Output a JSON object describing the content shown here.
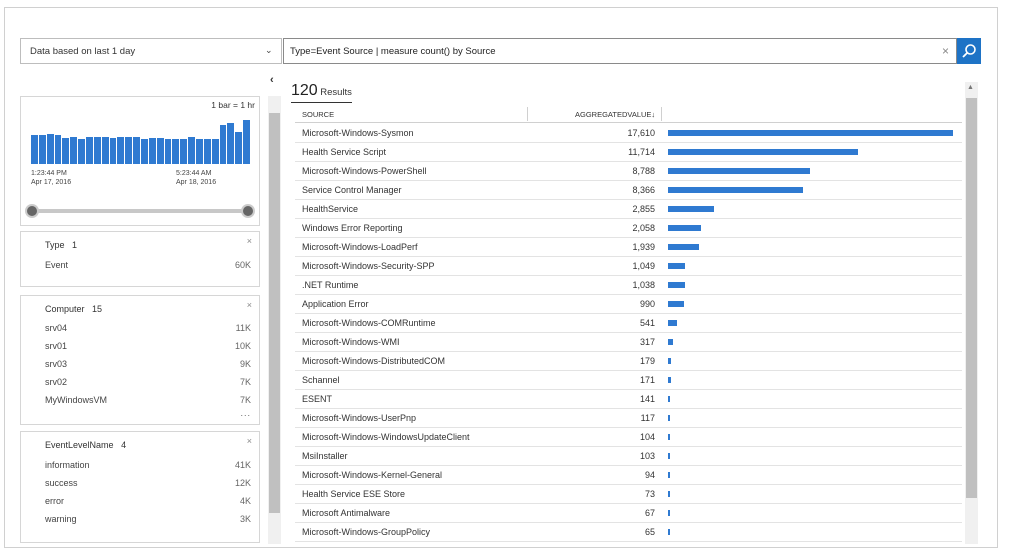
{
  "toolbar": {
    "time_range": "Data based on last 1 day",
    "query": "Type=Event Source | measure count() by Source"
  },
  "histogram": {
    "bar_unit_label": "1 bar = 1 hr",
    "start_time": "1:23:44 PM",
    "start_date": "Apr 17, 2016",
    "end_time": "5:23:44 AM",
    "end_date": "Apr 18, 2016",
    "bar_levels": [
      0.55,
      0.55,
      0.58,
      0.55,
      0.5,
      0.52,
      0.48,
      0.52,
      0.52,
      0.52,
      0.5,
      0.52,
      0.52,
      0.52,
      0.48,
      0.5,
      0.5,
      0.48,
      0.48,
      0.48,
      0.52,
      0.48,
      0.48,
      0.48,
      0.75,
      0.78,
      0.62,
      0.85
    ]
  },
  "facets": [
    {
      "title": "Type",
      "count": "1",
      "rows": [
        {
          "label": "Event",
          "value": "60K"
        }
      ]
    },
    {
      "title": "Computer",
      "count": "15",
      "rows": [
        {
          "label": "srv04",
          "value": "11K"
        },
        {
          "label": "srv01",
          "value": "10K"
        },
        {
          "label": "srv03",
          "value": "9K"
        },
        {
          "label": "srv02",
          "value": "7K"
        },
        {
          "label": "MyWindowsVM",
          "value": "7K"
        }
      ],
      "more": "..."
    },
    {
      "title": "EventLevelName",
      "count": "4",
      "rows": [
        {
          "label": "information",
          "value": "41K"
        },
        {
          "label": "success",
          "value": "12K"
        },
        {
          "label": "error",
          "value": "4K"
        },
        {
          "label": "warning",
          "value": "3K"
        }
      ]
    }
  ],
  "results": {
    "count": "120",
    "count_label": "Results",
    "col_source": "SOURCE",
    "col_value": "AGGREGATEDVALUE",
    "bar_color": "#2f7ad1",
    "rows": [
      {
        "source": "Microsoft-Windows-Sysmon",
        "value": "17,610",
        "n": 17610
      },
      {
        "source": "Health Service Script",
        "value": "11,714",
        "n": 11714
      },
      {
        "source": "Microsoft-Windows-PowerShell",
        "value": "8,788",
        "n": 8788
      },
      {
        "source": "Service Control Manager",
        "value": "8,366",
        "n": 8366
      },
      {
        "source": "HealthService",
        "value": "2,855",
        "n": 2855
      },
      {
        "source": "Windows Error Reporting",
        "value": "2,058",
        "n": 2058
      },
      {
        "source": "Microsoft-Windows-LoadPerf",
        "value": "1,939",
        "n": 1939
      },
      {
        "source": "Microsoft-Windows-Security-SPP",
        "value": "1,049",
        "n": 1049
      },
      {
        "source": ".NET Runtime",
        "value": "1,038",
        "n": 1038
      },
      {
        "source": "Application Error",
        "value": "990",
        "n": 990
      },
      {
        "source": "Microsoft-Windows-COMRuntime",
        "value": "541",
        "n": 541
      },
      {
        "source": "Microsoft-Windows-WMI",
        "value": "317",
        "n": 317
      },
      {
        "source": "Microsoft-Windows-DistributedCOM",
        "value": "179",
        "n": 179
      },
      {
        "source": "Schannel",
        "value": "171",
        "n": 171
      },
      {
        "source": "ESENT",
        "value": "141",
        "n": 141
      },
      {
        "source": "Microsoft-Windows-UserPnp",
        "value": "117",
        "n": 117
      },
      {
        "source": "Microsoft-Windows-WindowsUpdateClient",
        "value": "104",
        "n": 104
      },
      {
        "source": "MsiInstaller",
        "value": "103",
        "n": 103
      },
      {
        "source": "Microsoft-Windows-Kernel-General",
        "value": "94",
        "n": 94
      },
      {
        "source": "Health Service ESE Store",
        "value": "73",
        "n": 73
      },
      {
        "source": "Microsoft Antimalware",
        "value": "67",
        "n": 67
      },
      {
        "source": "Microsoft-Windows-GroupPolicy",
        "value": "65",
        "n": 65
      }
    ]
  }
}
